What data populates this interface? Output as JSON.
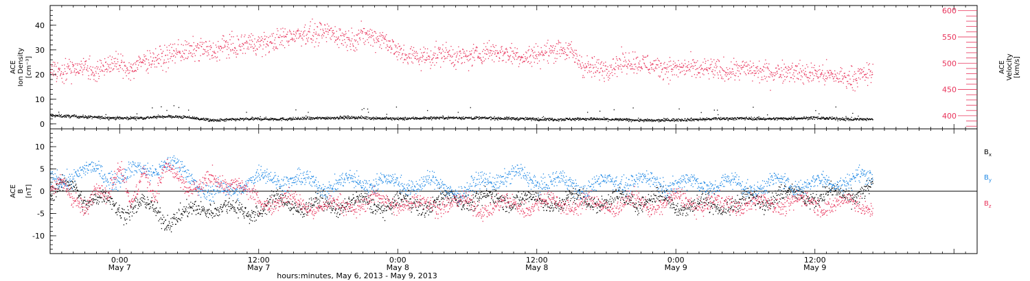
{
  "chart_data": {
    "type": "scatter",
    "x_axis": {
      "label": "hours:minutes, May  6, 2013 - May  9, 2013",
      "range_hours_from_start": [
        0,
        80
      ],
      "ticks": [
        {
          "hour": 6,
          "time": "0:00",
          "date": "May 7"
        },
        {
          "hour": 18,
          "time": "12:00",
          "date": "May 7"
        },
        {
          "hour": 30,
          "time": "0:00",
          "date": "May 8"
        },
        {
          "hour": 42,
          "time": "12:00",
          "date": "May 8"
        },
        {
          "hour": 54,
          "time": "0:00",
          "date": "May 9"
        },
        {
          "hour": 66,
          "time": "12:00",
          "date": "May 9"
        }
      ],
      "data_end_hour": 71
    },
    "panels": [
      {
        "name": "density-velocity",
        "left_axis": {
          "label_lines": [
            "ACE",
            "Ion Density",
            "[cm⁻³]"
          ],
          "range": [
            -2,
            48
          ],
          "ticks": [
            0,
            10,
            20,
            30,
            40
          ]
        },
        "right_axis": {
          "label_lines": [
            "ACE",
            "Velocity",
            "[km/s]"
          ],
          "range": [
            375,
            610
          ],
          "ticks": [
            400,
            450,
            500,
            550,
            600
          ],
          "color": "#e8325a"
        },
        "series": [
          {
            "name": "Ion Density",
            "color": "#000000",
            "axis": "left",
            "points": [
              [
                0,
                3.5
              ],
              [
                2,
                3.2
              ],
              [
                4,
                2.8
              ],
              [
                6,
                2.5
              ],
              [
                8,
                2.6
              ],
              [
                10,
                3.2
              ],
              [
                12,
                2.8
              ],
              [
                14,
                1.5
              ],
              [
                16,
                2.0
              ],
              [
                18,
                2.2
              ],
              [
                20,
                2.1
              ],
              [
                22,
                2.3
              ],
              [
                24,
                2.6
              ],
              [
                26,
                2.8
              ],
              [
                28,
                2.5
              ],
              [
                30,
                2.2
              ],
              [
                32,
                2.5
              ],
              [
                34,
                2.7
              ],
              [
                36,
                2.6
              ],
              [
                38,
                2.5
              ],
              [
                40,
                2.3
              ],
              [
                42,
                2.1
              ],
              [
                44,
                2.0
              ],
              [
                46,
                2.2
              ],
              [
                48,
                2.0
              ],
              [
                50,
                1.8
              ],
              [
                52,
                1.5
              ],
              [
                54,
                1.8
              ],
              [
                56,
                2.0
              ],
              [
                58,
                2.3
              ],
              [
                60,
                2.4
              ],
              [
                62,
                2.2
              ],
              [
                64,
                2.4
              ],
              [
                66,
                2.6
              ],
              [
                68,
                2.2
              ],
              [
                70,
                2.0
              ],
              [
                71,
                2.0
              ]
            ]
          },
          {
            "name": "Velocity",
            "color": "#e8325a",
            "axis": "right",
            "points": [
              [
                0,
                490
              ],
              [
                1,
                485
              ],
              [
                2,
                492
              ],
              [
                3,
                495
              ],
              [
                4,
                482
              ],
              [
                5,
                500
              ],
              [
                6,
                498
              ],
              [
                7,
                488
              ],
              [
                8,
                505
              ],
              [
                9,
                510
              ],
              [
                10,
                512
              ],
              [
                11,
                525
              ],
              [
                12,
                522
              ],
              [
                13,
                530
              ],
              [
                14,
                520
              ],
              [
                15,
                535
              ],
              [
                16,
                530
              ],
              [
                17,
                540
              ],
              [
                18,
                538
              ],
              [
                19,
                540
              ],
              [
                20,
                548
              ],
              [
                21,
                555
              ],
              [
                22,
                558
              ],
              [
                23,
                555
              ],
              [
                24,
                560
              ],
              [
                25,
                552
              ],
              [
                26,
                545
              ],
              [
                27,
                555
              ],
              [
                28,
                550
              ],
              [
                29,
                545
              ],
              [
                30,
                520
              ],
              [
                31,
                515
              ],
              [
                32,
                512
              ],
              [
                33,
                515
              ],
              [
                34,
                520
              ],
              [
                35,
                513
              ],
              [
                36,
                512
              ],
              [
                37,
                518
              ],
              [
                38,
                525
              ],
              [
                39,
                520
              ],
              [
                40,
                518
              ],
              [
                41,
                512
              ],
              [
                42,
                518
              ],
              [
                43,
                522
              ],
              [
                44,
                530
              ],
              [
                45,
                520
              ],
              [
                46,
                495
              ],
              [
                47,
                490
              ],
              [
                48,
                492
              ],
              [
                49,
                500
              ],
              [
                50,
                505
              ],
              [
                51,
                500
              ],
              [
                52,
                495
              ],
              [
                53,
                492
              ],
              [
                54,
                490
              ],
              [
                55,
                492
              ],
              [
                56,
                488
              ],
              [
                57,
                490
              ],
              [
                58,
                485
              ],
              [
                59,
                488
              ],
              [
                60,
                490
              ],
              [
                61,
                485
              ],
              [
                62,
                482
              ],
              [
                63,
                485
              ],
              [
                64,
                488
              ],
              [
                65,
                480
              ],
              [
                66,
                482
              ],
              [
                67,
                478
              ],
              [
                68,
                475
              ],
              [
                69,
                472
              ],
              [
                70,
                478
              ],
              [
                71,
                482
              ]
            ]
          }
        ]
      },
      {
        "name": "magnetic-field",
        "left_axis": {
          "label_lines": [
            "ACE",
            "B",
            "[nT]"
          ],
          "range": [
            -14,
            14
          ],
          "ticks": [
            -10,
            -5,
            0,
            5,
            10
          ]
        },
        "zero_line": true,
        "series": [
          {
            "name": "Bx",
            "legend_main": "B",
            "legend_sub": "x",
            "color": "#000000",
            "points": [
              [
                0,
                -1
              ],
              [
                2,
                2
              ],
              [
                3,
                -2
              ],
              [
                5,
                -2
              ],
              [
                6,
                -4
              ],
              [
                8,
                -3
              ],
              [
                10,
                -6
              ],
              [
                12,
                -5
              ],
              [
                14,
                -3
              ],
              [
                16,
                -4.5
              ],
              [
                18,
                -4
              ],
              [
                20,
                -2
              ],
              [
                22,
                -3.5
              ],
              [
                24,
                -3
              ],
              [
                26,
                -2.5
              ],
              [
                28,
                -3
              ],
              [
                30,
                -2.5
              ],
              [
                32,
                -3
              ],
              [
                34,
                -2
              ],
              [
                36,
                -1.5
              ],
              [
                38,
                -1.8
              ],
              [
                40,
                -1.5
              ],
              [
                42,
                -2.2
              ],
              [
                44,
                -2.2
              ],
              [
                46,
                -1.8
              ],
              [
                48,
                -2.2
              ],
              [
                50,
                -2
              ],
              [
                52,
                -1.5
              ],
              [
                54,
                -2.8
              ],
              [
                56,
                -3.2
              ],
              [
                58,
                -3
              ],
              [
                60,
                -2.5
              ],
              [
                62,
                -1
              ],
              [
                64,
                -0.5
              ],
              [
                66,
                -1
              ],
              [
                68,
                -0.8
              ],
              [
                70,
                0
              ],
              [
                71,
                0.5
              ]
            ]
          },
          {
            "name": "By",
            "legend_main": "B",
            "legend_sub": "y",
            "color": "#1e88e5",
            "points": [
              [
                0,
                2
              ],
              [
                2,
                4
              ],
              [
                4,
                4.5
              ],
              [
                6,
                3
              ],
              [
                8,
                5
              ],
              [
                10,
                6
              ],
              [
                12,
                4
              ],
              [
                13,
                1
              ],
              [
                14,
                -1
              ],
              [
                16,
                1
              ],
              [
                18,
                3
              ],
              [
                20,
                3
              ],
              [
                22,
                2
              ],
              [
                24,
                1.5
              ],
              [
                26,
                2
              ],
              [
                28,
                2.5
              ],
              [
                30,
                1.5
              ],
              [
                32,
                2
              ],
              [
                34,
                1
              ],
              [
                36,
                0
              ],
              [
                38,
                3
              ],
              [
                40,
                3.5
              ],
              [
                42,
                2.5
              ],
              [
                44,
                2
              ],
              [
                46,
                1
              ],
              [
                48,
                2
              ],
              [
                50,
                2.5
              ],
              [
                52,
                2
              ],
              [
                54,
                2
              ],
              [
                56,
                1.5
              ],
              [
                58,
                2
              ],
              [
                60,
                1
              ],
              [
                62,
                1.5
              ],
              [
                64,
                2
              ],
              [
                66,
                1.5
              ],
              [
                68,
                2.5
              ],
              [
                70,
                2.8
              ],
              [
                71,
                3
              ]
            ]
          },
          {
            "name": "Bz",
            "legend_main": "B",
            "legend_sub": "z",
            "color": "#e8325a",
            "points": [
              [
                0,
                2
              ],
              [
                1,
                3
              ],
              [
                2,
                -3
              ],
              [
                3,
                -5
              ],
              [
                4,
                3
              ],
              [
                5,
                -1
              ],
              [
                6,
                5
              ],
              [
                7,
                -3
              ],
              [
                8,
                6
              ],
              [
                9,
                -2
              ],
              [
                10,
                5
              ],
              [
                11,
                4
              ],
              [
                12,
                1
              ],
              [
                13,
                0
              ],
              [
                14,
                3
              ],
              [
                16,
                2
              ],
              [
                17,
                -1
              ],
              [
                18,
                -2
              ],
              [
                20,
                -2
              ],
              [
                22,
                -3
              ],
              [
                24,
                -3.5
              ],
              [
                26,
                -3
              ],
              [
                28,
                -2
              ],
              [
                30,
                -2.5
              ],
              [
                32,
                -3
              ],
              [
                34,
                -2.5
              ],
              [
                36,
                -3
              ],
              [
                38,
                -3.5
              ],
              [
                40,
                -3
              ],
              [
                42,
                -2.8
              ],
              [
                44,
                -2.5
              ],
              [
                46,
                -3
              ],
              [
                48,
                -3
              ],
              [
                50,
                -2.5
              ],
              [
                52,
                -3
              ],
              [
                54,
                -2
              ],
              [
                56,
                -2.5
              ],
              [
                58,
                -3
              ],
              [
                60,
                -2.5
              ],
              [
                62,
                -3
              ],
              [
                64,
                -2
              ],
              [
                66,
                -3
              ],
              [
                68,
                -2.5
              ],
              [
                70,
                -3.2
              ],
              [
                71,
                -3
              ]
            ]
          }
        ]
      }
    ]
  }
}
